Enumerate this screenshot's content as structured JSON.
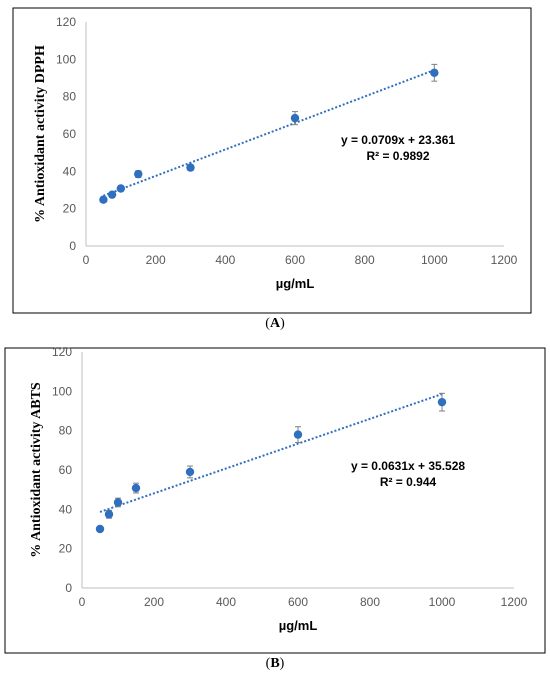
{
  "chart_data": [
    {
      "type": "scatter",
      "panel_label": "A",
      "xlabel": "µg/mL",
      "ylabel": "% Antioxidant activity DPPH",
      "xlim": [
        0,
        1200
      ],
      "ylim": [
        0,
        120
      ],
      "xticks": [
        "0",
        "200",
        "400",
        "600",
        "800",
        "1000",
        "1200"
      ],
      "yticks": [
        "0",
        "20",
        "40",
        "60",
        "80",
        "100",
        "120"
      ],
      "grid": false,
      "marker_color": "#2f6fbf",
      "trend_color": "#2f6fbf",
      "points": [
        {
          "x": 50,
          "y": 24.8,
          "err": 1.2
        },
        {
          "x": 75,
          "y": 27.5,
          "err": 1.2
        },
        {
          "x": 100,
          "y": 30.8,
          "err": 1.3
        },
        {
          "x": 150,
          "y": 38.5,
          "err": 1.8
        },
        {
          "x": 300,
          "y": 42.0,
          "err": 1.5
        },
        {
          "x": 600,
          "y": 68.5,
          "err": 3.5
        },
        {
          "x": 1000,
          "y": 92.8,
          "err": 4.5
        }
      ],
      "trendline": {
        "slope": 0.0709,
        "intercept": 23.361,
        "x_range": [
          50,
          1000
        ]
      },
      "equation": "y = 0.0709x + 23.361",
      "r2": "R² = 0.9892"
    },
    {
      "type": "scatter",
      "panel_label": "B",
      "xlabel": "µg/mL",
      "ylabel": "% Antioxidant activity  ABTS",
      "xlim": [
        0,
        1200
      ],
      "ylim": [
        0,
        120
      ],
      "xticks": [
        "0",
        "200",
        "400",
        "600",
        "800",
        "1000",
        "1200"
      ],
      "yticks": [
        "0",
        "20",
        "40",
        "60",
        "80",
        "100",
        "120"
      ],
      "grid": false,
      "marker_color": "#2f6fbf",
      "trend_color": "#2f6fbf",
      "points": [
        {
          "x": 50,
          "y": 30.0,
          "err": 1.0
        },
        {
          "x": 75,
          "y": 37.5,
          "err": 2.0
        },
        {
          "x": 100,
          "y": 43.5,
          "err": 2.2
        },
        {
          "x": 150,
          "y": 50.8,
          "err": 2.5
        },
        {
          "x": 300,
          "y": 59.0,
          "err": 3.0
        },
        {
          "x": 600,
          "y": 78.0,
          "err": 4.0
        },
        {
          "x": 1000,
          "y": 94.5,
          "err": 4.5
        }
      ],
      "trendline": {
        "slope": 0.0631,
        "intercept": 35.528,
        "x_range": [
          50,
          1000
        ]
      },
      "equation": "y = 0.0631x + 35.528",
      "r2": "R² = 0.944"
    }
  ],
  "captions": [
    {
      "left": "(",
      "label": "A",
      "right": ")"
    },
    {
      "left": "(",
      "label": "B",
      "right": ")"
    }
  ]
}
